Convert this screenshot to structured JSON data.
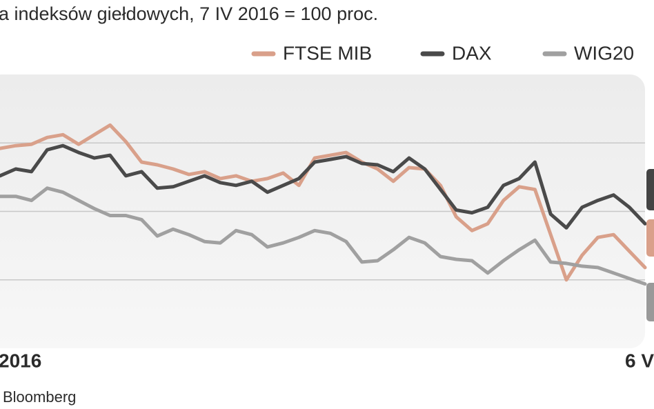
{
  "chart_data": {
    "type": "line",
    "subtitle": "a indeksów giełdowych, 7 IV 2016 = 100 proc.",
    "source": "Bloomberg",
    "categories": [
      "2016",
      null,
      null,
      null,
      null,
      null,
      null,
      null,
      null,
      null,
      null,
      null,
      null,
      null,
      null,
      null,
      null,
      null,
      null,
      null,
      null,
      null,
      null,
      null,
      null,
      null,
      null,
      null,
      null,
      null,
      null,
      null,
      null,
      null,
      null,
      null,
      null,
      null,
      null,
      null,
      null,
      "6 V"
    ],
    "series": [
      {
        "name": "FTSE MIB",
        "color": "#d9a08a",
        "values": [
          104.6,
          104.8,
          104.9,
          105.4,
          105.6,
          104.9,
          105.6,
          106.3,
          105.1,
          103.6,
          103.4,
          103.1,
          102.7,
          102.9,
          102.4,
          102.6,
          102.2,
          102.4,
          102.8,
          101.9,
          103.9,
          104.1,
          104.3,
          103.6,
          103.1,
          102.2,
          103.2,
          103.1,
          101.9,
          99.6,
          98.6,
          99.1,
          100.8,
          101.8,
          101.6,
          98.3,
          95.0,
          96.8,
          98.1,
          98.3,
          97.1,
          95.9
        ]
      },
      {
        "name": "DAX",
        "color": "#4a4a4a",
        "values": [
          102.6,
          103.1,
          102.9,
          104.5,
          104.8,
          104.3,
          103.9,
          104.1,
          102.6,
          102.9,
          101.7,
          101.8,
          102.2,
          102.6,
          102.1,
          101.9,
          102.2,
          101.4,
          101.9,
          102.4,
          103.6,
          103.8,
          104.0,
          103.5,
          103.4,
          102.9,
          103.9,
          103.1,
          101.6,
          100.1,
          99.9,
          100.3,
          101.9,
          102.4,
          103.6,
          99.8,
          98.8,
          100.3,
          100.8,
          101.2,
          100.3,
          99.1
        ]
      },
      {
        "name": "WIG20",
        "color": "#a0a0a0",
        "values": [
          101.1,
          101.1,
          100.8,
          101.7,
          101.4,
          100.8,
          100.2,
          99.7,
          99.7,
          99.4,
          98.2,
          98.7,
          98.3,
          97.8,
          97.7,
          98.6,
          98.3,
          97.4,
          97.7,
          98.1,
          98.6,
          98.4,
          97.8,
          96.3,
          96.4,
          97.2,
          98.1,
          97.7,
          96.7,
          96.5,
          96.4,
          95.5,
          96.4,
          97.2,
          97.9,
          96.3,
          96.2,
          96.0,
          95.9,
          95.5,
          95.1,
          94.7
        ]
      }
    ],
    "ylim": [
      90,
      110
    ],
    "gridlines": [
      105,
      100,
      95
    ]
  }
}
